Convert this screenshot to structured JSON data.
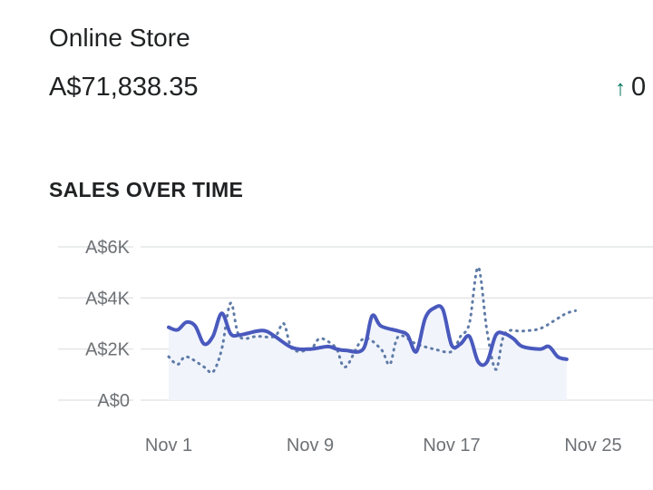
{
  "header": {
    "title": "Online Store",
    "value": "A$71,838.35",
    "change_text": "0"
  },
  "colors": {
    "primary_series": "#4959bd",
    "comparison_series": "#5f7ba7",
    "area_fill": "#f1f4fb",
    "grid": "#e4e5e7",
    "positive": "#00755e"
  },
  "chart_data": {
    "type": "line",
    "title": "SALES OVER TIME",
    "xlabel": "",
    "ylabel": "",
    "y_ticks": [
      "A$6K",
      "A$4K",
      "A$2K",
      "A$0"
    ],
    "y_tick_values": [
      6000,
      4000,
      2000,
      0
    ],
    "ylim": [
      0,
      6000
    ],
    "x_tick_labels": [
      "Nov 1",
      "Nov 9",
      "Nov 17",
      "Nov 25"
    ],
    "x_tick_days": [
      1,
      9,
      17,
      25
    ],
    "xlim": [
      1,
      30
    ],
    "grid": true,
    "legend": "none",
    "series": [
      {
        "style": "solid",
        "points": [
          [
            1,
            2850
          ],
          [
            1.5,
            2750
          ],
          [
            2,
            3050
          ],
          [
            2.5,
            2900
          ],
          [
            3,
            2200
          ],
          [
            3.5,
            2500
          ],
          [
            4,
            3400
          ],
          [
            4.5,
            2600
          ],
          [
            5,
            2550
          ],
          [
            6,
            2700
          ],
          [
            6.5,
            2700
          ],
          [
            7,
            2500
          ],
          [
            8,
            2050
          ],
          [
            9,
            2000
          ],
          [
            10,
            2100
          ],
          [
            10.5,
            2000
          ],
          [
            11,
            1950
          ],
          [
            12,
            2000
          ],
          [
            12.5,
            3300
          ],
          [
            13,
            2900
          ],
          [
            14,
            2700
          ],
          [
            14.5,
            2550
          ],
          [
            15,
            1900
          ],
          [
            15.5,
            3200
          ],
          [
            16,
            3600
          ],
          [
            16.5,
            3550
          ],
          [
            17,
            2150
          ],
          [
            17.5,
            2200
          ],
          [
            18,
            2500
          ],
          [
            18.5,
            1500
          ],
          [
            19,
            1500
          ],
          [
            19.5,
            2550
          ],
          [
            20,
            2600
          ],
          [
            20.5,
            2400
          ],
          [
            21,
            2100
          ],
          [
            22,
            2000
          ],
          [
            22.5,
            2100
          ],
          [
            23,
            1700
          ],
          [
            23.5,
            1600
          ]
        ]
      },
      {
        "style": "dotted",
        "points": [
          [
            1,
            1700
          ],
          [
            1.5,
            1400
          ],
          [
            2,
            1700
          ],
          [
            3,
            1300
          ],
          [
            3.5,
            1100
          ],
          [
            4,
            2000
          ],
          [
            4.5,
            3800
          ],
          [
            5,
            2500
          ],
          [
            6,
            2500
          ],
          [
            7,
            2500
          ],
          [
            7.5,
            3000
          ],
          [
            8,
            2000
          ],
          [
            9,
            2000
          ],
          [
            9.5,
            2400
          ],
          [
            10,
            2300
          ],
          [
            10.5,
            2000
          ],
          [
            11,
            1300
          ],
          [
            12,
            2400
          ],
          [
            13,
            2000
          ],
          [
            13.5,
            1400
          ],
          [
            14,
            2500
          ],
          [
            15,
            2200
          ],
          [
            16,
            2000
          ],
          [
            17,
            1900
          ],
          [
            17.5,
            2500
          ],
          [
            18,
            3000
          ],
          [
            18.5,
            5200
          ],
          [
            19,
            2700
          ],
          [
            19.5,
            1200
          ],
          [
            20,
            2600
          ],
          [
            21,
            2700
          ],
          [
            22,
            2800
          ],
          [
            23,
            3200
          ],
          [
            23.5,
            3400
          ],
          [
            24,
            3500
          ]
        ]
      }
    ]
  }
}
